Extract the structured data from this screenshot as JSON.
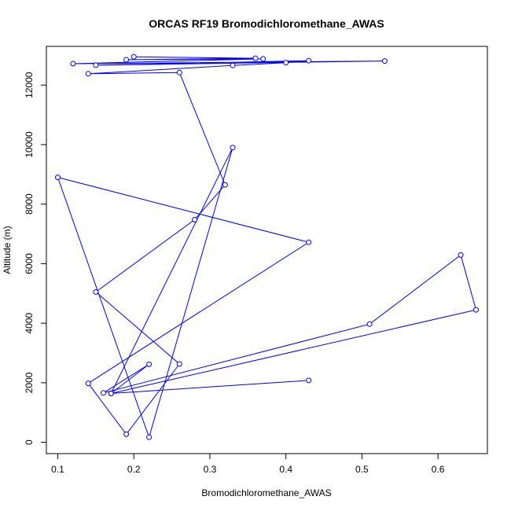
{
  "chart_data": {
    "type": "line",
    "title": "ORCAS RF19 Bromodichloromethane_AWAS",
    "xlabel": "Bromodichloromethane_AWAS",
    "ylabel": "Altitude (m)",
    "xlim": [
      0.085,
      0.665
    ],
    "ylim": [
      -380,
      13300
    ],
    "xticks": [
      0.1,
      0.2,
      0.3,
      0.4,
      0.5,
      0.6
    ],
    "xtick_labels": [
      "0.1",
      "0.2",
      "0.3",
      "0.4",
      "0.5",
      "0.6"
    ],
    "yticks": [
      0,
      2000,
      4000,
      6000,
      8000,
      10000,
      12000
    ],
    "ytick_labels": [
      "0",
      "2000",
      "4000",
      "6000",
      "8000",
      "10000",
      "12000"
    ],
    "grid": false,
    "legend": "none",
    "series": [
      {
        "color": "#0000ff",
        "marker": "open-circle",
        "x": [
          0.2,
          0.36,
          0.19,
          0.37,
          0.12,
          0.53,
          0.15,
          0.43,
          0.4,
          0.33,
          0.14,
          0.26,
          0.32,
          0.28,
          0.15,
          0.26,
          0.19,
          0.14,
          0.43,
          0.1,
          0.22,
          0.33,
          0.17,
          0.22,
          0.16,
          0.51,
          0.63,
          0.65,
          0.17,
          0.43
        ],
        "y": [
          12950,
          12900,
          12850,
          12880,
          12720,
          12810,
          12670,
          12820,
          12750,
          12660,
          12380,
          12420,
          8650,
          7480,
          5050,
          2630,
          270,
          1980,
          6720,
          8900,
          170,
          9900,
          1640,
          2620,
          1660,
          3970,
          6290,
          4450,
          1640,
          2080
        ]
      }
    ]
  }
}
